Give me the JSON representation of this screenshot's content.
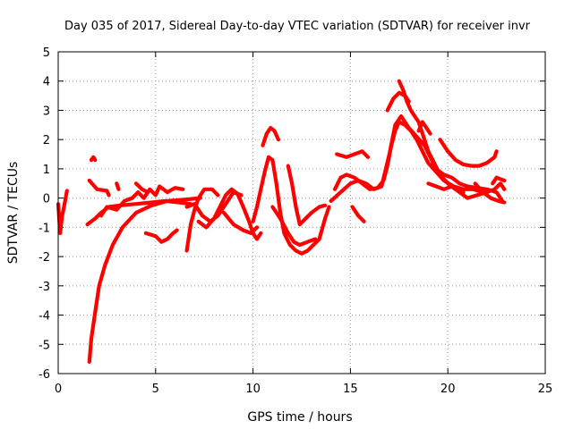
{
  "chart_data": {
    "type": "scatter",
    "title": "Day 035 of 2017, Sidereal Day-to-day VTEC variation (SDTVAR) for receiver invr",
    "xlabel": "GPS time / hours",
    "ylabel": "SDTVAR / TECUs",
    "xlim": [
      0,
      25
    ],
    "ylim": [
      -6,
      5
    ],
    "xticks": [
      0,
      5,
      10,
      15,
      20,
      25
    ],
    "yticks": [
      -6,
      -5,
      -4,
      -3,
      -2,
      -1,
      0,
      1,
      2,
      3,
      4,
      5
    ],
    "grid": true,
    "marker": "+",
    "color": "#ff0000",
    "series": [
      {
        "name": "track-1",
        "points": [
          [
            0.0,
            -0.2
          ],
          [
            0.1,
            -1.2
          ],
          [
            0.2,
            -0.6
          ],
          [
            0.3,
            -0.3
          ],
          [
            0.45,
            0.25
          ]
        ]
      },
      {
        "name": "track-2",
        "points": [
          [
            1.7,
            1.3
          ],
          [
            1.8,
            1.4
          ],
          [
            1.9,
            1.3
          ]
        ]
      },
      {
        "name": "track-3",
        "points": [
          [
            1.6,
            0.6
          ],
          [
            2.0,
            0.3
          ],
          [
            2.5,
            0.25
          ],
          [
            2.6,
            0.1
          ]
        ]
      },
      {
        "name": "track-4",
        "points": [
          [
            1.5,
            -0.9
          ],
          [
            1.9,
            -0.7
          ],
          [
            2.2,
            -0.5
          ],
          [
            2.6,
            -0.3
          ],
          [
            3.2,
            -0.25
          ],
          [
            4.0,
            -0.2
          ],
          [
            4.8,
            -0.15
          ],
          [
            5.5,
            -0.1
          ],
          [
            6.2,
            -0.15
          ],
          [
            6.8,
            -0.2
          ]
        ]
      },
      {
        "name": "track-5",
        "points": [
          [
            1.6,
            -5.6
          ],
          [
            1.7,
            -4.8
          ],
          [
            1.9,
            -3.9
          ],
          [
            2.1,
            -3.0
          ],
          [
            2.4,
            -2.3
          ],
          [
            2.8,
            -1.6
          ],
          [
            3.3,
            -1.0
          ],
          [
            4.0,
            -0.5
          ],
          [
            4.8,
            -0.25
          ],
          [
            5.6,
            -0.1
          ],
          [
            6.5,
            -0.05
          ],
          [
            7.3,
            0.0
          ]
        ]
      },
      {
        "name": "track-6",
        "points": [
          [
            2.2,
            -0.6
          ],
          [
            2.5,
            -0.3
          ],
          [
            3.0,
            -0.4
          ],
          [
            3.4,
            -0.1
          ],
          [
            3.8,
            0.0
          ],
          [
            4.1,
            0.2
          ],
          [
            4.4,
            0.0
          ],
          [
            4.7,
            0.3
          ],
          [
            5.0,
            0.1
          ],
          [
            5.2,
            0.4
          ],
          [
            5.6,
            0.2
          ],
          [
            6.0,
            0.35
          ],
          [
            6.4,
            0.3
          ]
        ]
      },
      {
        "name": "track-7",
        "points": [
          [
            3.0,
            0.5
          ],
          [
            3.1,
            0.3
          ]
        ]
      },
      {
        "name": "track-8",
        "points": [
          [
            4.0,
            0.5
          ],
          [
            4.3,
            0.3
          ],
          [
            4.6,
            0.2
          ]
        ]
      },
      {
        "name": "track-9",
        "points": [
          [
            4.5,
            -1.2
          ],
          [
            5.0,
            -1.3
          ],
          [
            5.3,
            -1.5
          ],
          [
            5.6,
            -1.4
          ],
          [
            5.9,
            -1.2
          ],
          [
            6.1,
            -1.1
          ]
        ]
      },
      {
        "name": "track-10",
        "points": [
          [
            6.6,
            -1.8
          ],
          [
            6.8,
            -0.9
          ],
          [
            7.0,
            -0.4
          ],
          [
            7.2,
            0.0
          ],
          [
            7.5,
            0.3
          ],
          [
            7.9,
            0.3
          ],
          [
            8.2,
            0.1
          ]
        ]
      },
      {
        "name": "track-11",
        "points": [
          [
            6.6,
            -0.3
          ],
          [
            7.0,
            -0.2
          ],
          [
            7.4,
            -0.6
          ],
          [
            7.8,
            -0.8
          ],
          [
            8.2,
            -0.6
          ],
          [
            8.6,
            -0.2
          ],
          [
            9.0,
            0.2
          ],
          [
            9.4,
            0.1
          ]
        ]
      },
      {
        "name": "track-12",
        "points": [
          [
            7.2,
            -0.8
          ],
          [
            7.6,
            -1.0
          ],
          [
            8.0,
            -0.7
          ],
          [
            8.3,
            -0.3
          ],
          [
            8.6,
            0.1
          ],
          [
            8.9,
            0.3
          ],
          [
            9.2,
            0.15
          ],
          [
            9.5,
            -0.3
          ],
          [
            9.8,
            -0.8
          ],
          [
            10.0,
            -1.2
          ],
          [
            10.2,
            -1.4
          ],
          [
            10.4,
            -1.2
          ]
        ]
      },
      {
        "name": "track-13",
        "points": [
          [
            8.5,
            -0.5
          ],
          [
            9.0,
            -0.9
          ],
          [
            9.5,
            -1.1
          ],
          [
            9.9,
            -1.2
          ],
          [
            10.2,
            -1.0
          ]
        ]
      },
      {
        "name": "track-14",
        "points": [
          [
            10.0,
            -0.8
          ],
          [
            10.2,
            -0.3
          ],
          [
            10.4,
            0.3
          ],
          [
            10.6,
            0.9
          ],
          [
            10.8,
            1.4
          ],
          [
            11.0,
            1.3
          ],
          [
            11.2,
            0.5
          ],
          [
            11.4,
            -0.5
          ],
          [
            11.6,
            -1.2
          ],
          [
            11.9,
            -1.6
          ],
          [
            12.2,
            -1.8
          ],
          [
            12.5,
            -1.9
          ],
          [
            12.8,
            -1.8
          ],
          [
            13.1,
            -1.6
          ],
          [
            13.4,
            -1.4
          ],
          [
            13.7,
            -0.7
          ],
          [
            13.9,
            -0.3
          ]
        ]
      },
      {
        "name": "track-15",
        "points": [
          [
            10.5,
            1.8
          ],
          [
            10.7,
            2.2
          ],
          [
            10.9,
            2.4
          ],
          [
            11.1,
            2.3
          ],
          [
            11.3,
            2.0
          ]
        ]
      },
      {
        "name": "track-16",
        "points": [
          [
            11.8,
            1.1
          ],
          [
            12.0,
            0.5
          ],
          [
            12.2,
            -0.3
          ],
          [
            12.4,
            -0.9
          ],
          [
            12.7,
            -0.7
          ],
          [
            13.0,
            -0.5
          ],
          [
            13.4,
            -0.3
          ],
          [
            13.7,
            -0.25
          ]
        ]
      },
      {
        "name": "track-17",
        "points": [
          [
            11.0,
            -0.3
          ],
          [
            11.4,
            -0.7
          ],
          [
            11.8,
            -1.2
          ],
          [
            12.1,
            -1.5
          ],
          [
            12.4,
            -1.6
          ],
          [
            12.8,
            -1.5
          ],
          [
            13.2,
            -1.4
          ]
        ]
      },
      {
        "name": "track-18",
        "points": [
          [
            14.2,
            0.3
          ],
          [
            14.5,
            0.7
          ],
          [
            14.8,
            0.8
          ],
          [
            15.2,
            0.7
          ],
          [
            15.6,
            0.5
          ],
          [
            16.0,
            0.3
          ],
          [
            16.4,
            0.35
          ],
          [
            16.7,
            0.6
          ],
          [
            16.9,
            1.1
          ],
          [
            17.1,
            1.8
          ],
          [
            17.3,
            2.3
          ],
          [
            17.5,
            2.6
          ],
          [
            17.8,
            2.5
          ],
          [
            18.1,
            2.3
          ],
          [
            18.4,
            2.0
          ],
          [
            18.7,
            1.6
          ],
          [
            19.0,
            1.2
          ],
          [
            19.4,
            0.9
          ],
          [
            19.8,
            0.6
          ],
          [
            20.3,
            0.4
          ],
          [
            20.8,
            0.3
          ],
          [
            21.3,
            0.3
          ],
          [
            21.8,
            0.2
          ]
        ]
      },
      {
        "name": "track-19",
        "points": [
          [
            14.0,
            -0.1
          ],
          [
            14.5,
            0.2
          ],
          [
            15.0,
            0.5
          ],
          [
            15.4,
            0.6
          ],
          [
            15.8,
            0.5
          ],
          [
            16.2,
            0.3
          ],
          [
            16.6,
            0.4
          ],
          [
            17.0,
            1.5
          ],
          [
            17.3,
            2.5
          ],
          [
            17.6,
            2.8
          ],
          [
            18.0,
            2.4
          ],
          [
            18.4,
            2.1
          ],
          [
            18.8,
            1.8
          ],
          [
            19.1,
            1.4
          ],
          [
            19.4,
            1.0
          ],
          [
            19.8,
            0.8
          ],
          [
            20.2,
            0.7
          ],
          [
            20.6,
            0.5
          ],
          [
            21.0,
            0.4
          ],
          [
            21.5,
            0.35
          ],
          [
            22.0,
            0.3
          ],
          [
            22.5,
            0.2
          ],
          [
            22.8,
            -0.1
          ]
        ]
      },
      {
        "name": "track-20",
        "points": [
          [
            14.3,
            1.5
          ],
          [
            14.8,
            1.4
          ],
          [
            15.2,
            1.5
          ],
          [
            15.6,
            1.6
          ],
          [
            15.9,
            1.4
          ]
        ]
      },
      {
        "name": "track-21",
        "points": [
          [
            15.1,
            -0.3
          ],
          [
            15.4,
            -0.6
          ],
          [
            15.7,
            -0.8
          ]
        ]
      },
      {
        "name": "track-22",
        "points": [
          [
            16.9,
            3.0
          ],
          [
            17.2,
            3.4
          ],
          [
            17.5,
            3.6
          ],
          [
            17.8,
            3.5
          ],
          [
            18.0,
            3.3
          ]
        ]
      },
      {
        "name": "track-23",
        "points": [
          [
            17.5,
            4.0
          ],
          [
            17.7,
            3.7
          ],
          [
            17.9,
            3.3
          ],
          [
            18.1,
            3.0
          ],
          [
            18.3,
            2.8
          ],
          [
            18.5,
            2.6
          ],
          [
            18.8,
            2.0
          ],
          [
            19.0,
            1.6
          ],
          [
            19.3,
            1.2
          ],
          [
            19.6,
            0.8
          ],
          [
            20.0,
            0.5
          ],
          [
            20.4,
            0.3
          ],
          [
            20.8,
            0.2
          ]
        ]
      },
      {
        "name": "track-24",
        "points": [
          [
            18.5,
            2.3
          ],
          [
            18.7,
            2.6
          ],
          [
            18.9,
            2.4
          ],
          [
            19.1,
            2.2
          ]
        ]
      },
      {
        "name": "track-25",
        "points": [
          [
            19.6,
            2.0
          ],
          [
            20.0,
            1.6
          ],
          [
            20.4,
            1.3
          ],
          [
            20.8,
            1.15
          ],
          [
            21.2,
            1.1
          ],
          [
            21.6,
            1.1
          ],
          [
            22.0,
            1.2
          ],
          [
            22.4,
            1.4
          ],
          [
            22.5,
            1.6
          ]
        ]
      },
      {
        "name": "track-26",
        "points": [
          [
            19.0,
            0.5
          ],
          [
            19.4,
            0.4
          ],
          [
            19.8,
            0.3
          ],
          [
            20.2,
            0.4
          ],
          [
            20.6,
            0.2
          ],
          [
            21.0,
            0.0
          ],
          [
            21.5,
            0.1
          ],
          [
            22.0,
            0.2
          ],
          [
            22.4,
            0.3
          ],
          [
            22.7,
            0.5
          ],
          [
            22.9,
            0.3
          ]
        ]
      },
      {
        "name": "track-27",
        "points": [
          [
            21.4,
            0.5
          ],
          [
            21.8,
            0.2
          ],
          [
            22.2,
            0.0
          ],
          [
            22.6,
            -0.1
          ],
          [
            22.9,
            -0.15
          ]
        ]
      },
      {
        "name": "track-28",
        "points": [
          [
            22.3,
            0.5
          ],
          [
            22.5,
            0.7
          ],
          [
            22.7,
            0.65
          ],
          [
            22.9,
            0.6
          ]
        ]
      }
    ]
  }
}
